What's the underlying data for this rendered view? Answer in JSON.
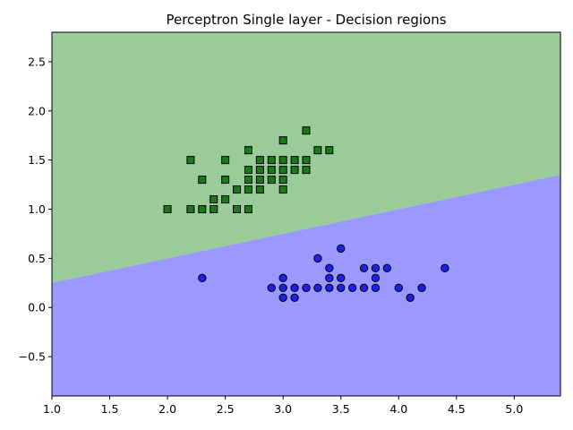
{
  "chart_data": {
    "type": "scatter",
    "title": "Perceptron Single layer - Decision regions",
    "xlabel": "",
    "ylabel": "",
    "xlim": [
      1.0,
      5.4
    ],
    "ylim": [
      -0.9,
      2.8
    ],
    "xticks": [
      1.0,
      1.5,
      2.0,
      2.5,
      3.0,
      3.5,
      4.0,
      4.5,
      5.0
    ],
    "xtick_labels": [
      "1.0",
      "1.5",
      "2.0",
      "2.5",
      "3.0",
      "3.5",
      "4.0",
      "4.5",
      "5.0"
    ],
    "yticks": [
      -0.5,
      0.0,
      0.5,
      1.0,
      1.5,
      2.0,
      2.5
    ],
    "ytick_labels": [
      "−0.5",
      "0.0",
      "0.5",
      "1.0",
      "1.5",
      "2.0",
      "2.5"
    ],
    "grid": false,
    "decision_boundary": {
      "x": [
        1.0,
        5.4
      ],
      "y": [
        0.25,
        1.35
      ]
    },
    "regions": [
      {
        "side": "above",
        "color": "#99cc99"
      },
      {
        "side": "below",
        "color": "#9999ff"
      }
    ],
    "series": [
      {
        "marker": "circle",
        "color": "#1f1fe6",
        "points": [
          [
            2.3,
            0.3
          ],
          [
            2.9,
            0.2
          ],
          [
            3.0,
            0.3
          ],
          [
            3.0,
            0.2
          ],
          [
            3.0,
            0.1
          ],
          [
            3.1,
            0.2
          ],
          [
            3.1,
            0.1
          ],
          [
            3.2,
            0.2
          ],
          [
            3.3,
            0.5
          ],
          [
            3.3,
            0.2
          ],
          [
            3.4,
            0.4
          ],
          [
            3.4,
            0.3
          ],
          [
            3.4,
            0.2
          ],
          [
            3.5,
            0.6
          ],
          [
            3.5,
            0.3
          ],
          [
            3.5,
            0.2
          ],
          [
            3.6,
            0.2
          ],
          [
            3.7,
            0.4
          ],
          [
            3.7,
            0.2
          ],
          [
            3.8,
            0.4
          ],
          [
            3.8,
            0.3
          ],
          [
            3.8,
            0.2
          ],
          [
            3.9,
            0.4
          ],
          [
            4.0,
            0.2
          ],
          [
            4.1,
            0.1
          ],
          [
            4.2,
            0.2
          ],
          [
            4.4,
            0.4
          ]
        ]
      },
      {
        "marker": "square",
        "color": "#1a7a1a",
        "points": [
          [
            2.0,
            1.0
          ],
          [
            2.2,
            1.0
          ],
          [
            2.2,
            1.5
          ],
          [
            2.3,
            1.0
          ],
          [
            2.3,
            1.3
          ],
          [
            2.4,
            1.0
          ],
          [
            2.4,
            1.1
          ],
          [
            2.5,
            1.1
          ],
          [
            2.5,
            1.3
          ],
          [
            2.5,
            1.5
          ],
          [
            2.6,
            1.0
          ],
          [
            2.6,
            1.2
          ],
          [
            2.7,
            1.0
          ],
          [
            2.7,
            1.2
          ],
          [
            2.7,
            1.3
          ],
          [
            2.7,
            1.4
          ],
          [
            2.7,
            1.6
          ],
          [
            2.8,
            1.2
          ],
          [
            2.8,
            1.3
          ],
          [
            2.8,
            1.4
          ],
          [
            2.8,
            1.5
          ],
          [
            2.9,
            1.3
          ],
          [
            2.9,
            1.4
          ],
          [
            2.9,
            1.5
          ],
          [
            3.0,
            1.2
          ],
          [
            3.0,
            1.3
          ],
          [
            3.0,
            1.4
          ],
          [
            3.0,
            1.5
          ],
          [
            3.0,
            1.7
          ],
          [
            3.1,
            1.4
          ],
          [
            3.1,
            1.5
          ],
          [
            3.2,
            1.4
          ],
          [
            3.2,
            1.5
          ],
          [
            3.2,
            1.8
          ],
          [
            3.3,
            1.6
          ],
          [
            3.4,
            1.6
          ]
        ]
      }
    ]
  }
}
